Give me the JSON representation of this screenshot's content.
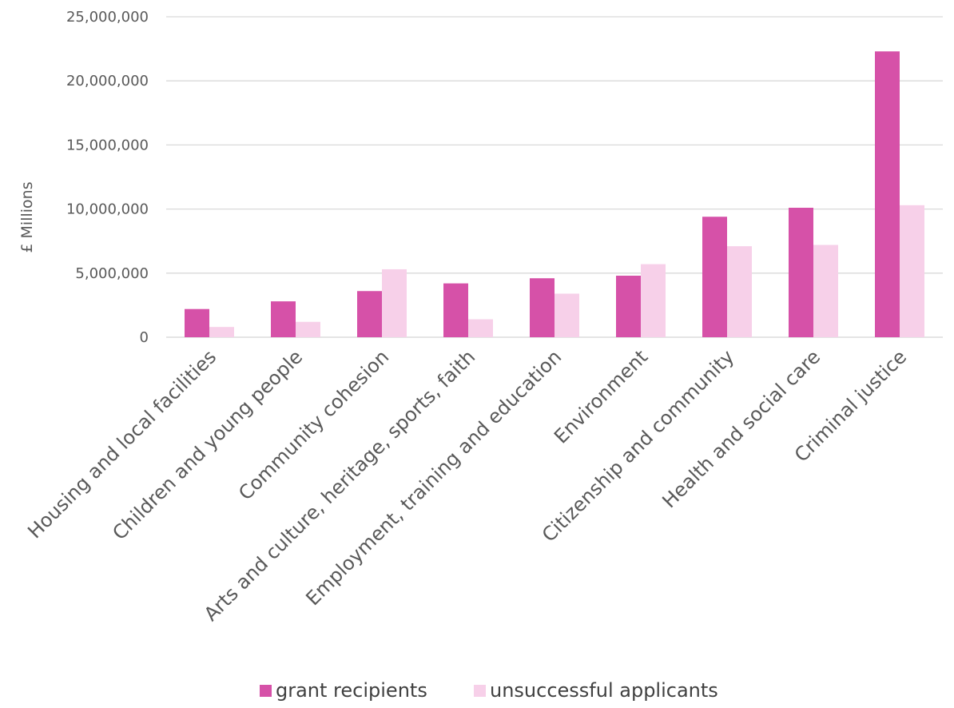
{
  "chart_data": {
    "type": "bar",
    "title": "",
    "xlabel": "",
    "ylabel": "£ Millions",
    "ylim": [
      0,
      25000000
    ],
    "yticks": [
      0,
      5000000,
      10000000,
      15000000,
      20000000,
      25000000
    ],
    "ytick_labels": [
      "0",
      "5,000,000",
      "10,000,000",
      "15,000,000",
      "20,000,000",
      "25,000,000"
    ],
    "grid": true,
    "legend_position": "bottom",
    "categories": [
      "Housing and local facilities",
      "Children and young people",
      "Community cohesion",
      "Arts and culture, heritage, sports, faith",
      "Employment, training and education",
      "Environment",
      "Citizenship and community",
      "Health and social care",
      "Criminal justice"
    ],
    "series": [
      {
        "name": "grant recipients",
        "color": "#d651a8",
        "values": [
          2200000,
          2800000,
          3600000,
          4200000,
          4600000,
          4800000,
          9400000,
          10100000,
          22300000
        ]
      },
      {
        "name": "unsuccessful applicants",
        "color": "#f7d0e9",
        "values": [
          800000,
          1200000,
          5300000,
          1400000,
          3400000,
          5700000,
          7100000,
          7200000,
          10300000
        ]
      }
    ]
  }
}
